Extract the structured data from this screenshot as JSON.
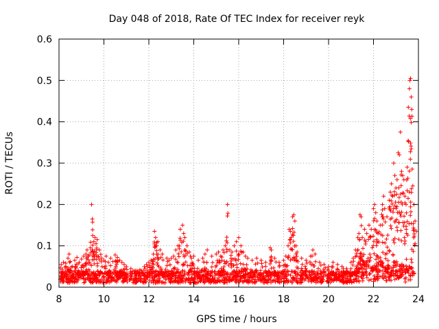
{
  "chart_data": {
    "type": "scatter",
    "title": "Day 048 of 2018, Rate Of TEC Index for receiver reyk",
    "xlabel": "GPS time / hours",
    "ylabel": "ROTI / TECUs",
    "xlim": [
      8,
      24
    ],
    "ylim": [
      0,
      0.6
    ],
    "xticks": [
      8,
      10,
      12,
      14,
      16,
      18,
      20,
      22,
      24
    ],
    "xtick_labels": [
      "8",
      "10",
      "12",
      "14",
      "16",
      "18",
      "20",
      "22",
      "24"
    ],
    "yticks": [
      0,
      0.1,
      0.2,
      0.3,
      0.4,
      0.5,
      0.6
    ],
    "ytick_labels": [
      "0",
      "0.1",
      "0.2",
      "0.3",
      "0.4",
      "0.5",
      "0.6"
    ],
    "grid": true,
    "marker": "+",
    "series": [
      {
        "name": "ROTI",
        "color": "#ff0000",
        "points": [
          [
            8.1,
            0.055
          ],
          [
            8.2,
            0.06
          ],
          [
            8.3,
            0.058
          ],
          [
            8.4,
            0.07
          ],
          [
            8.45,
            0.08
          ],
          [
            8.5,
            0.062
          ],
          [
            8.6,
            0.05
          ],
          [
            8.7,
            0.065
          ],
          [
            8.8,
            0.072
          ],
          [
            8.9,
            0.06
          ],
          [
            9.0,
            0.068
          ],
          [
            9.1,
            0.075
          ],
          [
            9.2,
            0.08
          ],
          [
            9.25,
            0.09
          ],
          [
            9.3,
            0.075
          ],
          [
            9.4,
            0.095
          ],
          [
            9.45,
            0.2
          ],
          [
            9.5,
            0.125
          ],
          [
            9.55,
            0.11
          ],
          [
            9.6,
            0.12
          ],
          [
            9.65,
            0.105
          ],
          [
            9.7,
            0.115
          ],
          [
            9.8,
            0.09
          ],
          [
            9.9,
            0.07
          ],
          [
            10.0,
            0.065
          ],
          [
            10.1,
            0.075
          ],
          [
            10.2,
            0.06
          ],
          [
            10.3,
            0.07
          ],
          [
            10.4,
            0.062
          ],
          [
            10.5,
            0.078
          ],
          [
            10.6,
            0.072
          ],
          [
            10.7,
            0.065
          ],
          [
            10.8,
            0.06
          ],
          [
            10.9,
            0.055
          ],
          [
            11.0,
            0.05
          ],
          [
            11.2,
            0.045
          ],
          [
            11.4,
            0.04
          ],
          [
            11.6,
            0.042
          ],
          [
            11.8,
            0.05
          ],
          [
            11.9,
            0.055
          ],
          [
            12.0,
            0.06
          ],
          [
            12.1,
            0.065
          ],
          [
            12.2,
            0.08
          ],
          [
            12.25,
            0.135
          ],
          [
            12.3,
            0.12
          ],
          [
            12.35,
            0.1
          ],
          [
            12.4,
            0.11
          ],
          [
            12.5,
            0.09
          ],
          [
            12.6,
            0.08
          ],
          [
            12.8,
            0.07
          ],
          [
            12.9,
            0.065
          ],
          [
            13.0,
            0.07
          ],
          [
            13.1,
            0.075
          ],
          [
            13.2,
            0.09
          ],
          [
            13.3,
            0.1
          ],
          [
            13.4,
            0.14
          ],
          [
            13.5,
            0.15
          ],
          [
            13.55,
            0.13
          ],
          [
            13.6,
            0.12
          ],
          [
            13.7,
            0.1
          ],
          [
            13.8,
            0.085
          ],
          [
            13.9,
            0.07
          ],
          [
            14.0,
            0.075
          ],
          [
            14.2,
            0.065
          ],
          [
            14.4,
            0.07
          ],
          [
            14.5,
            0.08
          ],
          [
            14.6,
            0.09
          ],
          [
            14.8,
            0.075
          ],
          [
            15.0,
            0.08
          ],
          [
            15.1,
            0.085
          ],
          [
            15.2,
            0.075
          ],
          [
            15.3,
            0.09
          ],
          [
            15.4,
            0.1
          ],
          [
            15.45,
            0.112
          ],
          [
            15.5,
            0.2
          ],
          [
            15.6,
            0.09
          ],
          [
            15.7,
            0.085
          ],
          [
            15.8,
            0.1
          ],
          [
            15.9,
            0.11
          ],
          [
            16.0,
            0.12
          ],
          [
            16.1,
            0.1
          ],
          [
            16.2,
            0.085
          ],
          [
            16.3,
            0.075
          ],
          [
            16.4,
            0.07
          ],
          [
            16.6,
            0.065
          ],
          [
            16.8,
            0.07
          ],
          [
            17.0,
            0.065
          ],
          [
            17.2,
            0.06
          ],
          [
            17.4,
            0.095
          ],
          [
            17.45,
            0.09
          ],
          [
            17.6,
            0.07
          ],
          [
            17.8,
            0.06
          ],
          [
            18.0,
            0.065
          ],
          [
            18.1,
            0.075
          ],
          [
            18.2,
            0.1
          ],
          [
            18.25,
            0.14
          ],
          [
            18.3,
            0.135
          ],
          [
            18.4,
            0.17
          ],
          [
            18.45,
            0.175
          ],
          [
            18.5,
            0.16
          ],
          [
            18.55,
            0.1
          ],
          [
            18.6,
            0.085
          ],
          [
            18.8,
            0.07
          ],
          [
            19.0,
            0.065
          ],
          [
            19.2,
            0.075
          ],
          [
            19.3,
            0.09
          ],
          [
            19.4,
            0.08
          ],
          [
            19.6,
            0.06
          ],
          [
            19.8,
            0.055
          ],
          [
            20.0,
            0.05
          ],
          [
            20.2,
            0.06
          ],
          [
            20.4,
            0.055
          ],
          [
            20.6,
            0.05
          ],
          [
            20.8,
            0.045
          ],
          [
            21.0,
            0.06
          ],
          [
            21.1,
            0.07
          ],
          [
            21.2,
            0.09
          ],
          [
            21.3,
            0.12
          ],
          [
            21.35,
            0.13
          ],
          [
            21.4,
            0.175
          ],
          [
            21.45,
            0.17
          ],
          [
            21.5,
            0.12
          ],
          [
            21.6,
            0.14
          ],
          [
            21.7,
            0.13
          ],
          [
            21.8,
            0.15
          ],
          [
            21.9,
            0.14
          ],
          [
            22.0,
            0.19
          ],
          [
            22.05,
            0.2
          ],
          [
            22.1,
            0.18
          ],
          [
            22.15,
            0.16
          ],
          [
            22.2,
            0.13
          ],
          [
            22.3,
            0.15
          ],
          [
            22.4,
            0.2
          ],
          [
            22.45,
            0.22
          ],
          [
            22.5,
            0.19
          ],
          [
            22.6,
            0.17
          ],
          [
            22.7,
            0.21
          ],
          [
            22.75,
            0.23
          ],
          [
            22.8,
            0.25
          ],
          [
            22.85,
            0.22
          ],
          [
            22.9,
            0.3
          ],
          [
            22.95,
            0.27
          ],
          [
            23.0,
            0.24
          ],
          [
            23.05,
            0.26
          ],
          [
            23.1,
            0.325
          ],
          [
            23.15,
            0.32
          ],
          [
            23.2,
            0.375
          ],
          [
            23.25,
            0.28
          ],
          [
            23.3,
            0.27
          ],
          [
            23.35,
            0.26
          ],
          [
            23.4,
            0.22
          ],
          [
            23.45,
            0.2
          ],
          [
            23.5,
            0.29
          ],
          [
            23.55,
            0.435
          ],
          [
            23.6,
            0.48
          ],
          [
            23.62,
            0.5
          ],
          [
            23.65,
            0.505
          ],
          [
            23.68,
            0.46
          ],
          [
            23.7,
            0.43
          ],
          [
            23.75,
            0.245
          ],
          [
            23.8,
            0.2
          ],
          [
            23.85,
            0.16
          ]
        ]
      }
    ],
    "dense_band": {
      "note": "Dense floor of ROTI samples between about 0.01 and 0.04 TECU/min across the whole day",
      "x_range": [
        8.05,
        23.85
      ],
      "y_range": [
        0.01,
        0.04
      ]
    }
  }
}
